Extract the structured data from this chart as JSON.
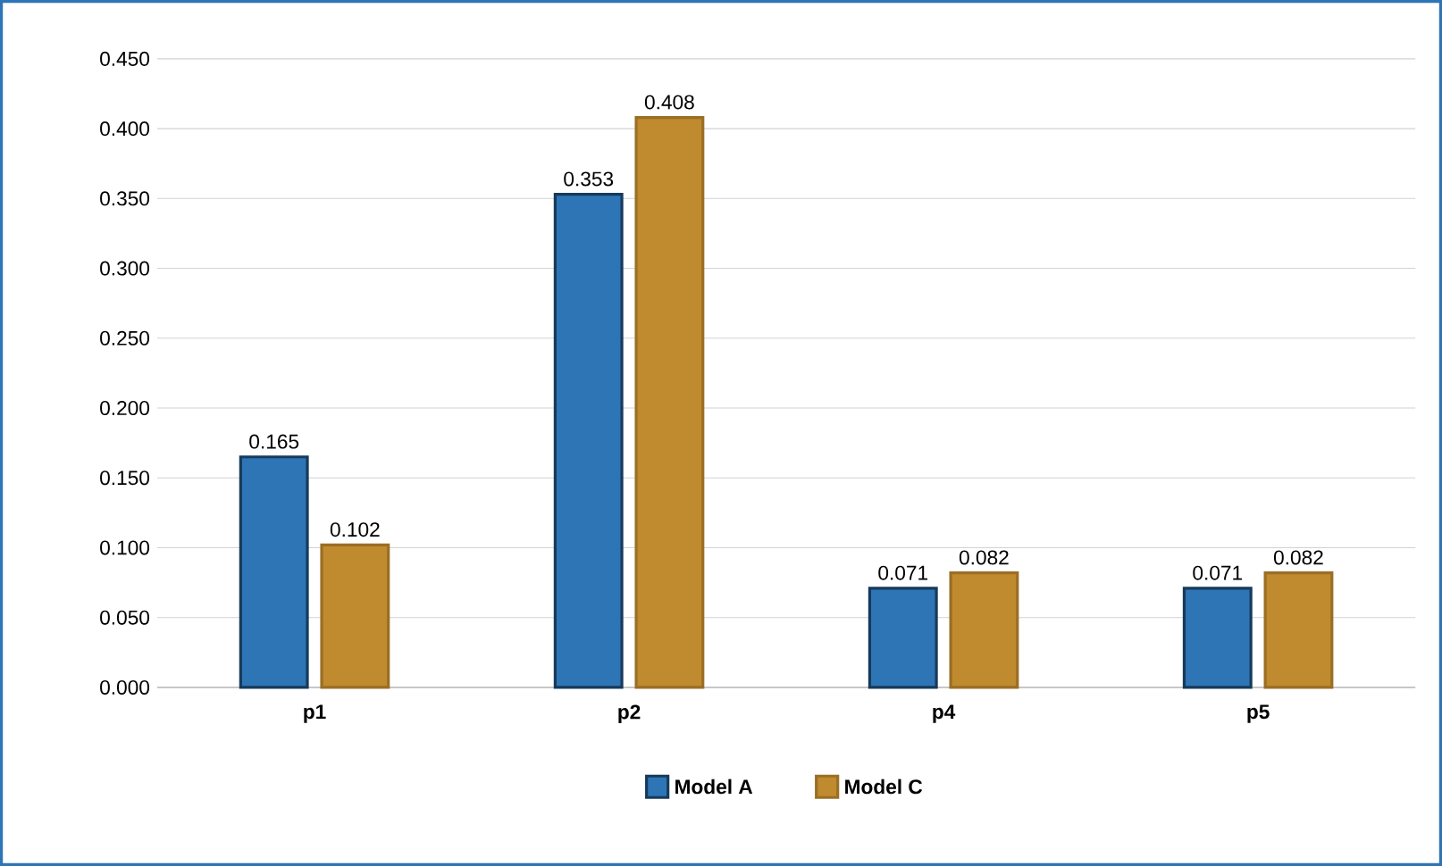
{
  "chart_data": {
    "type": "bar",
    "categories": [
      "p1",
      "p2",
      "p4",
      "p5"
    ],
    "series": [
      {
        "name": "Model A",
        "color": "#2e75b6",
        "values": [
          0.165,
          0.353,
          0.071,
          0.071
        ]
      },
      {
        "name": "Model C",
        "color": "#c08a2e",
        "values": [
          0.102,
          0.408,
          0.082,
          0.082
        ]
      }
    ],
    "ylim": [
      0,
      0.45
    ],
    "yticks": [
      {
        "value": 0,
        "label": "0.000"
      },
      {
        "value": 0.05,
        "label": "0.050"
      },
      {
        "value": 0.1,
        "label": "0.100"
      },
      {
        "value": 0.15,
        "label": "0.150"
      },
      {
        "value": 0.2,
        "label": "0.200"
      },
      {
        "value": 0.25,
        "label": "0.250"
      },
      {
        "value": 0.3,
        "label": "0.300"
      },
      {
        "value": 0.35,
        "label": "0.350"
      },
      {
        "value": 0.4,
        "label": "0.400"
      },
      {
        "value": 0.45,
        "label": "0.450"
      }
    ],
    "grid": "y",
    "legend": "bottom",
    "data_labels": true
  }
}
